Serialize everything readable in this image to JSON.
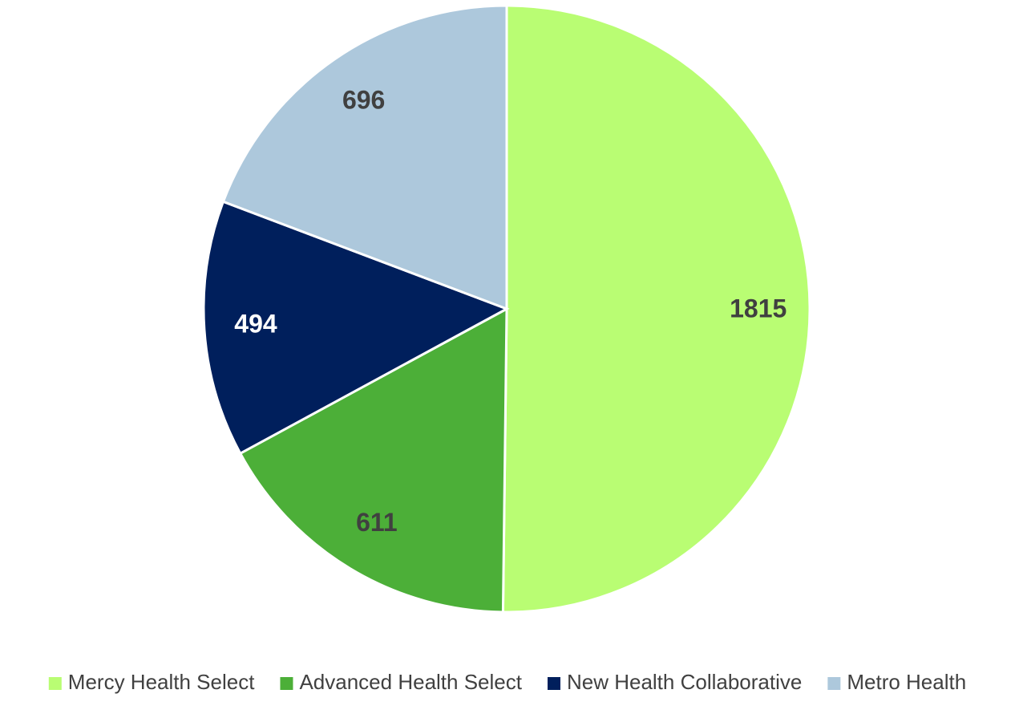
{
  "chart_data": {
    "type": "pie",
    "categories": [
      "Mercy Health Select",
      "Advanced Health Select",
      "New Health Collaborative",
      "Metro Health"
    ],
    "values": [
      1815,
      611,
      494,
      696
    ],
    "colors": [
      "#b9fd73",
      "#4caf38",
      "#001f5c",
      "#adc8dc"
    ],
    "label_colors": [
      "#404040",
      "#404040",
      "#ffffff",
      "#404040"
    ],
    "legend": "bottom"
  }
}
